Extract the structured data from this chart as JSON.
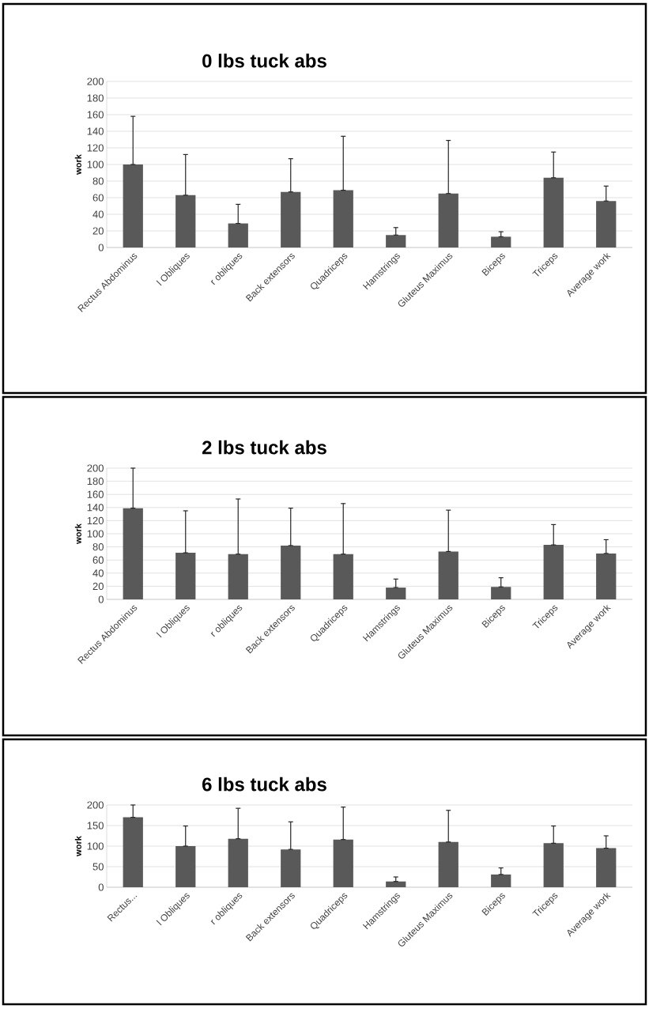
{
  "chart_data": [
    {
      "type": "bar",
      "title": "0 lbs tuck abs",
      "ylabel": "work",
      "color": "#595959",
      "grid": "y",
      "ylim": [
        0,
        200
      ],
      "yticks": [
        0,
        20,
        40,
        60,
        80,
        100,
        120,
        140,
        160,
        180,
        200
      ],
      "categories": [
        "Rectus Abdominus",
        "l Obliques",
        "r obliques",
        "Back extensors",
        "Quadriceps",
        "Hamstrings",
        "Gluteus Maximus",
        "Biceps",
        "Triceps",
        "Average work"
      ],
      "values": [
        100,
        63,
        29,
        67,
        69,
        15,
        65,
        13,
        84,
        56
      ],
      "errors": [
        [
          100,
          158
        ],
        [
          63,
          112
        ],
        [
          29,
          52
        ],
        [
          67,
          107
        ],
        [
          69,
          134
        ],
        [
          15,
          24
        ],
        [
          65,
          129
        ],
        [
          13,
          19
        ],
        [
          84,
          115
        ],
        [
          56,
          74
        ]
      ]
    },
    {
      "type": "bar",
      "title": "2 lbs tuck abs",
      "ylabel": "work",
      "color": "#595959",
      "grid": "y",
      "ylim": [
        0,
        200
      ],
      "yticks": [
        0,
        20,
        40,
        60,
        80,
        100,
        120,
        140,
        160,
        180,
        200
      ],
      "categories": [
        "Rectus Abdominus",
        "l Obliques",
        "r obliques",
        "Back extensors",
        "Quadriceps",
        "Hamstrings",
        "Gluteus Maximus",
        "Biceps",
        "Triceps",
        "Average work"
      ],
      "values": [
        139,
        71,
        69,
        82,
        69,
        18,
        73,
        19,
        83,
        70
      ],
      "errors": [
        [
          139,
          200
        ],
        [
          71,
          135
        ],
        [
          69,
          153
        ],
        [
          82,
          139
        ],
        [
          69,
          146
        ],
        [
          18,
          31
        ],
        [
          73,
          136
        ],
        [
          19,
          33
        ],
        [
          83,
          114
        ],
        [
          70,
          91
        ]
      ]
    },
    {
      "type": "bar",
      "title": "6 lbs tuck abs",
      "ylabel": "work",
      "color": "#595959",
      "grid": "y",
      "ylim": [
        0,
        200
      ],
      "yticks": [
        0,
        50,
        100,
        150,
        200
      ],
      "categories": [
        "Rectus...",
        "l Obliques",
        "r obliques",
        "Back extensors",
        "Quadriceps",
        "Hamstrings",
        "Gluteus Maximus",
        "Biceps",
        "Triceps",
        "Average work"
      ],
      "values": [
        170,
        100,
        118,
        92,
        116,
        14,
        110,
        31,
        107,
        95
      ],
      "errors": [
        [
          170,
          200
        ],
        [
          100,
          149
        ],
        [
          118,
          192
        ],
        [
          92,
          159
        ],
        [
          116,
          195
        ],
        [
          14,
          25
        ],
        [
          110,
          187
        ],
        [
          31,
          47
        ],
        [
          107,
          149
        ],
        [
          95,
          125
        ]
      ]
    }
  ]
}
